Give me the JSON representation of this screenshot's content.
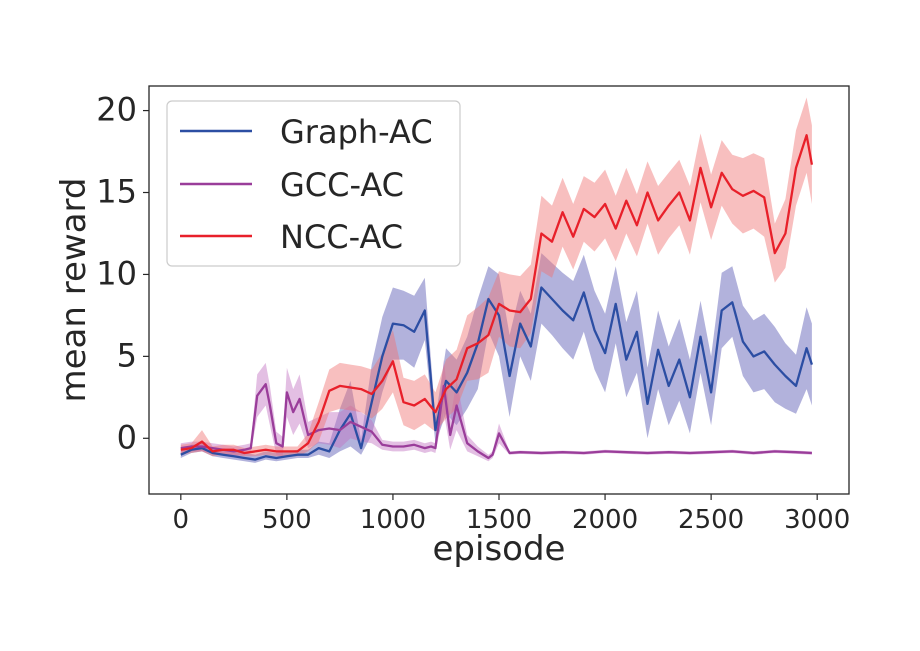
{
  "chart_data": {
    "type": "line",
    "title": "",
    "xlabel": "episode",
    "ylabel": "mean reward",
    "xlim": [
      -150,
      3150
    ],
    "ylim": [
      -3.4,
      21.5
    ],
    "xticks": [
      0,
      500,
      1000,
      1500,
      2000,
      2500,
      3000
    ],
    "yticks": [
      0,
      5,
      10,
      15,
      20
    ],
    "grid": false,
    "legend_position": "top-left",
    "series": [
      {
        "name": "Graph-AC",
        "color": "#2c4ea3",
        "band_color": "#3f3fa8",
        "band_opacity": 0.4,
        "x": [
          0,
          50,
          100,
          150,
          200,
          250,
          300,
          350,
          400,
          450,
          500,
          550,
          600,
          650,
          700,
          750,
          800,
          850,
          900,
          950,
          1000,
          1050,
          1100,
          1150,
          1200,
          1250,
          1300,
          1350,
          1400,
          1450,
          1500,
          1550,
          1600,
          1650,
          1700,
          1750,
          1800,
          1850,
          1900,
          1950,
          2000,
          2050,
          2100,
          2150,
          2200,
          2250,
          2300,
          2350,
          2400,
          2450,
          2500,
          2550,
          2600,
          2650,
          2700,
          2750,
          2800,
          2850,
          2900,
          2950,
          2975
        ],
        "y": [
          -1.0,
          -0.7,
          -0.6,
          -0.9,
          -1.0,
          -1.1,
          -1.2,
          -1.3,
          -1.1,
          -1.2,
          -1.1,
          -1.0,
          -1.0,
          -0.6,
          -0.8,
          0.5,
          1.5,
          -0.6,
          2.2,
          5.0,
          7.0,
          6.9,
          6.5,
          7.8,
          0.5,
          3.5,
          2.8,
          4.0,
          5.8,
          8.5,
          7.5,
          3.8,
          7.0,
          5.6,
          9.2,
          8.5,
          7.8,
          7.2,
          8.9,
          6.6,
          5.2,
          8.2,
          4.8,
          6.5,
          2.1,
          5.4,
          3.2,
          4.8,
          2.5,
          6.2,
          2.8,
          7.8,
          8.3,
          5.9,
          5.0,
          5.3,
          4.5,
          3.8,
          3.2,
          5.5,
          4.5
        ],
        "lower": [
          -1.2,
          -0.9,
          -0.8,
          -1.1,
          -1.2,
          -1.3,
          -1.4,
          -1.5,
          -1.3,
          -1.4,
          -1.3,
          -1.2,
          -1.2,
          -1.0,
          -1.2,
          -0.8,
          -0.5,
          -1.0,
          0.2,
          2.8,
          4.8,
          4.8,
          4.3,
          6.0,
          -0.3,
          1.5,
          0.8,
          1.8,
          3.0,
          6.5,
          5.0,
          1.3,
          5.0,
          3.5,
          7.0,
          6.3,
          5.5,
          4.8,
          6.5,
          4.2,
          2.8,
          5.8,
          2.5,
          4.0,
          0.0,
          3.0,
          0.8,
          2.3,
          0.3,
          4.0,
          0.8,
          5.5,
          6.2,
          3.8,
          2.8,
          3.0,
          2.2,
          1.8,
          1.5,
          3.0,
          2.0
        ],
        "upper": [
          -0.8,
          -0.4,
          -0.3,
          -0.6,
          -0.7,
          -0.8,
          -0.9,
          -1.0,
          -0.8,
          -0.9,
          -0.8,
          -0.7,
          -0.7,
          -0.2,
          -0.3,
          1.8,
          3.5,
          -0.1,
          4.5,
          7.4,
          9.2,
          9.0,
          8.7,
          9.8,
          1.2,
          5.5,
          4.8,
          6.2,
          8.5,
          10.5,
          10.0,
          6.3,
          9.0,
          7.6,
          11.3,
          10.7,
          10.1,
          9.6,
          11.2,
          9.0,
          7.6,
          10.5,
          7.1,
          9.0,
          4.3,
          7.8,
          5.6,
          7.3,
          4.8,
          8.4,
          5.0,
          10.1,
          10.5,
          8.1,
          7.2,
          7.6,
          6.8,
          5.8,
          5.1,
          8.0,
          7.0
        ]
      },
      {
        "name": "GCC-AC",
        "color": "#9a3d9a",
        "band_color": "#c070c0",
        "band_opacity": 0.45,
        "x": [
          0,
          50,
          100,
          150,
          200,
          250,
          300,
          330,
          360,
          400,
          420,
          450,
          480,
          500,
          530,
          560,
          600,
          650,
          700,
          750,
          800,
          850,
          900,
          950,
          1000,
          1050,
          1100,
          1150,
          1180,
          1200,
          1240,
          1270,
          1300,
          1350,
          1400,
          1450,
          1470,
          1500,
          1550,
          1600,
          1700,
          1800,
          1900,
          2000,
          2100,
          2200,
          2300,
          2400,
          2500,
          2600,
          2700,
          2800,
          2900,
          2975
        ],
        "y": [
          -0.6,
          -0.5,
          -0.5,
          -0.6,
          -0.7,
          -0.8,
          -0.7,
          -0.6,
          2.6,
          3.3,
          2.0,
          -0.3,
          -0.5,
          2.8,
          1.6,
          2.4,
          0.2,
          0.5,
          0.6,
          0.5,
          1.0,
          0.7,
          0.4,
          -0.4,
          -0.5,
          -0.5,
          -0.4,
          -0.6,
          -0.5,
          -0.6,
          3.2,
          0.2,
          2.0,
          -0.3,
          -0.8,
          -1.2,
          -1.0,
          0.3,
          -0.9,
          -0.85,
          -0.9,
          -0.85,
          -0.9,
          -0.8,
          -0.85,
          -0.9,
          -0.85,
          -0.9,
          -0.85,
          -0.8,
          -0.9,
          -0.8,
          -0.85,
          -0.9
        ],
        "lower": [
          -0.9,
          -0.8,
          -0.8,
          -0.9,
          -1.0,
          -1.1,
          -1.0,
          -0.9,
          1.3,
          2.0,
          0.8,
          -1.0,
          -1.1,
          1.3,
          0.2,
          0.9,
          -0.6,
          -0.3,
          -0.4,
          -0.6,
          0.0,
          -0.2,
          -0.3,
          -0.7,
          -0.8,
          -0.8,
          -0.7,
          -0.9,
          -0.8,
          -0.9,
          1.6,
          -0.7,
          0.5,
          -0.8,
          -1.1,
          -1.4,
          -1.2,
          -0.3,
          -1.0,
          -0.95,
          -1.0,
          -0.95,
          -1.0,
          -0.9,
          -0.95,
          -1.0,
          -0.95,
          -1.0,
          -0.95,
          -0.9,
          -1.0,
          -0.9,
          -0.95,
          -1.0
        ],
        "upper": [
          -0.3,
          -0.2,
          -0.2,
          -0.3,
          -0.4,
          -0.5,
          -0.4,
          -0.3,
          3.9,
          4.6,
          3.2,
          0.4,
          0.1,
          4.3,
          3.0,
          3.9,
          1.0,
          1.3,
          1.6,
          1.6,
          2.0,
          1.6,
          1.1,
          -0.1,
          -0.2,
          -0.2,
          -0.1,
          -0.3,
          -0.2,
          -0.3,
          4.8,
          1.1,
          3.5,
          0.2,
          -0.5,
          -1.0,
          -0.8,
          0.9,
          -0.8,
          -0.75,
          -0.8,
          -0.75,
          -0.8,
          -0.7,
          -0.75,
          -0.8,
          -0.75,
          -0.8,
          -0.75,
          -0.7,
          -0.8,
          -0.7,
          -0.75,
          -0.8
        ]
      },
      {
        "name": "NCC-AC",
        "color": "#e8202a",
        "band_color": "#f07070",
        "band_opacity": 0.45,
        "x": [
          0,
          50,
          100,
          150,
          200,
          250,
          300,
          350,
          400,
          450,
          500,
          550,
          600,
          650,
          700,
          750,
          800,
          850,
          900,
          950,
          1000,
          1050,
          1100,
          1150,
          1200,
          1250,
          1300,
          1350,
          1400,
          1450,
          1500,
          1550,
          1600,
          1650,
          1700,
          1750,
          1800,
          1850,
          1900,
          1950,
          2000,
          2050,
          2100,
          2150,
          2200,
          2250,
          2300,
          2350,
          2400,
          2450,
          2500,
          2550,
          2600,
          2650,
          2700,
          2750,
          2800,
          2850,
          2900,
          2950,
          2975
        ],
        "y": [
          -0.7,
          -0.6,
          -0.2,
          -0.8,
          -0.7,
          -0.7,
          -0.9,
          -0.8,
          -0.7,
          -0.8,
          -0.8,
          -0.8,
          -0.3,
          1.0,
          2.9,
          3.2,
          3.1,
          3.0,
          2.7,
          3.5,
          4.7,
          2.2,
          2.0,
          2.4,
          1.6,
          3.0,
          3.6,
          5.5,
          5.8,
          6.3,
          8.2,
          7.8,
          7.7,
          8.5,
          12.5,
          12.0,
          13.8,
          12.3,
          14.0,
          13.5,
          14.3,
          12.8,
          14.5,
          13.0,
          15.0,
          13.3,
          14.2,
          15.0,
          13.3,
          16.5,
          14.1,
          16.2,
          15.2,
          14.8,
          15.1,
          14.7,
          11.3,
          12.5,
          16.5,
          18.5,
          16.7
        ],
        "lower": [
          -1.0,
          -0.9,
          -0.8,
          -1.1,
          -1.0,
          -1.0,
          -1.1,
          -1.1,
          -1.0,
          -1.1,
          -1.1,
          -1.1,
          -0.8,
          -0.2,
          1.6,
          1.8,
          1.7,
          1.6,
          1.2,
          1.8,
          2.8,
          0.8,
          0.5,
          0.9,
          0.4,
          1.2,
          1.8,
          3.5,
          3.6,
          4.0,
          6.2,
          5.6,
          5.5,
          6.4,
          10.2,
          9.8,
          11.7,
          10.3,
          12.0,
          11.4,
          12.2,
          10.8,
          12.5,
          11.1,
          13.1,
          11.2,
          12.2,
          13.0,
          11.2,
          14.4,
          12.1,
          14.2,
          13.1,
          12.5,
          12.8,
          12.3,
          9.5,
          10.4,
          14.2,
          16.2,
          14.3
        ],
        "upper": [
          -0.4,
          -0.3,
          0.5,
          -0.5,
          -0.4,
          -0.4,
          -0.6,
          -0.5,
          -0.4,
          -0.5,
          -0.5,
          -0.5,
          0.3,
          2.2,
          4.2,
          4.6,
          4.5,
          4.4,
          4.2,
          5.2,
          6.6,
          3.7,
          3.5,
          3.9,
          2.8,
          4.8,
          5.4,
          7.5,
          8.0,
          8.6,
          10.2,
          10.0,
          9.9,
          10.6,
          14.8,
          14.2,
          15.9,
          14.3,
          16.0,
          15.6,
          16.4,
          14.8,
          16.5,
          14.9,
          16.9,
          15.4,
          16.2,
          17.0,
          15.4,
          18.6,
          16.1,
          18.2,
          17.3,
          17.1,
          17.4,
          17.1,
          13.1,
          14.6,
          18.8,
          20.8,
          19.1
        ]
      }
    ]
  }
}
